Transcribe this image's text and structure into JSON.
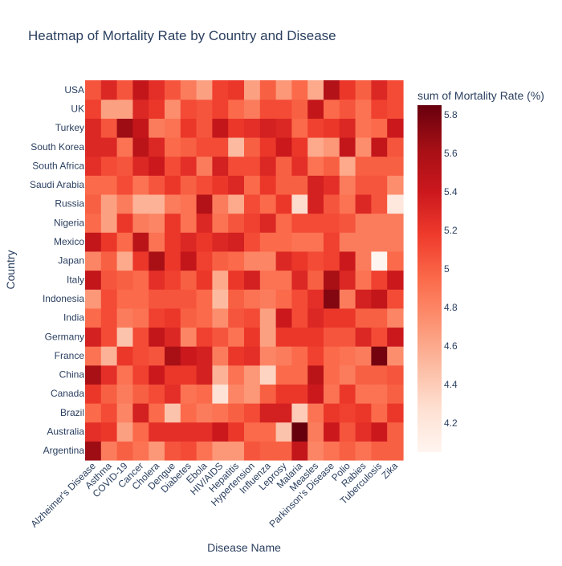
{
  "chart_data": {
    "type": "heatmap",
    "title": "Heatmap of Mortality Rate by Country and Disease",
    "xlabel": "Disease Name",
    "ylabel": "Country",
    "colorbar_title": "sum of Mortality Rate (%)",
    "colorscale": [
      "#fff5f0",
      "#fee0d2",
      "#fcbba1",
      "#fc9272",
      "#fb6a4a",
      "#ef3b2c",
      "#cb181d",
      "#a50f15",
      "#67000d"
    ],
    "zmin": 4.05,
    "zmax": 5.85,
    "colorbar_ticks": [
      4.2,
      4.4,
      4.6,
      4.8,
      5,
      5.2,
      5.4,
      5.6,
      5.8
    ],
    "colorbar_tick_labels": [
      "4.2",
      "4.4",
      "4.6",
      "4.8",
      "5",
      "5.2",
      "5.4",
      "5.6",
      "5.8"
    ],
    "x": [
      "Alzheimer's Disease",
      "Asthma",
      "COVID-19",
      "Cancer",
      "Cholera",
      "Dengue",
      "Diabetes",
      "Ebola",
      "HIV/AIDS",
      "Hepatitis",
      "Hypertension",
      "Influenza",
      "Leprosy",
      "Malaria",
      "Measles",
      "Parkinson's Disease",
      "Polio",
      "Rabies",
      "Tuberculosis",
      "Zika"
    ],
    "y": [
      "Argentina",
      "Australia",
      "Brazil",
      "Canada",
      "China",
      "France",
      "Germany",
      "India",
      "Indonesia",
      "Italy",
      "Japan",
      "Mexico",
      "Nigeria",
      "Russia",
      "Saudi Arabia",
      "South Africa",
      "South Korea",
      "Turkey",
      "UK",
      "USA"
    ],
    "z": [
      [
        5.65,
        4.85,
        5.0,
        4.9,
        4.7,
        5.05,
        5.1,
        4.9,
        4.7,
        4.7,
        5.05,
        5.0,
        5.0,
        5.45,
        4.8,
        4.9,
        5.0,
        4.9,
        5.0,
        5.0
      ],
      [
        5.25,
        5.2,
        4.65,
        4.95,
        5.25,
        5.25,
        5.25,
        5.25,
        5.4,
        5.2,
        4.95,
        4.95,
        4.45,
        5.85,
        4.85,
        5.4,
        5.05,
        5.25,
        5.4,
        5.0
      ],
      [
        4.95,
        5.1,
        4.8,
        5.35,
        4.95,
        4.45,
        4.95,
        4.85,
        4.9,
        5.0,
        5.1,
        5.35,
        5.35,
        4.4,
        4.9,
        5.2,
        5.15,
        5.2,
        4.95,
        5.2
      ],
      [
        5.2,
        5.0,
        4.85,
        5.0,
        5.1,
        5.25,
        4.9,
        4.95,
        4.25,
        4.8,
        4.7,
        5.0,
        5.2,
        5.2,
        5.4,
        4.9,
        5.2,
        4.9,
        4.9,
        5.0
      ],
      [
        5.6,
        5.25,
        4.9,
        5.15,
        5.4,
        5.2,
        5.2,
        5.35,
        4.55,
        4.9,
        4.7,
        4.35,
        4.95,
        4.95,
        5.5,
        4.95,
        4.85,
        5.0,
        5.0,
        5.05
      ],
      [
        4.9,
        4.55,
        5.2,
        5.1,
        5.05,
        5.6,
        5.4,
        5.35,
        4.85,
        5.2,
        5.25,
        4.8,
        4.85,
        4.95,
        5.15,
        4.95,
        4.9,
        4.85,
        5.8,
        4.75
      ],
      [
        5.35,
        5.1,
        4.45,
        5.1,
        5.45,
        5.3,
        4.8,
        5.15,
        5.05,
        4.9,
        5.2,
        4.65,
        5.2,
        5.2,
        5.2,
        5.05,
        5.05,
        5.3,
        5.1,
        5.4
      ],
      [
        4.95,
        5.1,
        4.85,
        4.9,
        5.15,
        5.2,
        5.0,
        4.95,
        4.75,
        5.05,
        5.1,
        4.65,
        5.4,
        5.1,
        5.3,
        5.2,
        5.2,
        5.0,
        5.0,
        4.8
      ],
      [
        4.7,
        5.1,
        4.95,
        4.95,
        5.05,
        5.05,
        5.05,
        4.95,
        4.5,
        5.0,
        4.9,
        4.85,
        4.95,
        5.1,
        5.25,
        5.75,
        4.85,
        5.35,
        5.45,
        5.1
      ],
      [
        5.45,
        5.05,
        5.0,
        4.95,
        5.25,
        5.15,
        5.0,
        5.2,
        4.6,
        5.2,
        5.35,
        4.9,
        4.9,
        5.3,
        5.0,
        5.6,
        5.3,
        4.9,
        5.15,
        5.4
      ],
      [
        4.8,
        5.0,
        4.6,
        5.2,
        5.6,
        5.2,
        5.45,
        5.15,
        5.0,
        4.95,
        4.8,
        4.8,
        5.3,
        5.2,
        5.1,
        5.15,
        5.4,
        4.85,
        4.05,
        4.95
      ],
      [
        5.45,
        5.2,
        4.95,
        5.5,
        4.9,
        5.2,
        5.3,
        5.2,
        5.3,
        5.35,
        5.1,
        4.95,
        4.95,
        4.9,
        4.9,
        5.15,
        4.85,
        4.85,
        4.85,
        4.85
      ],
      [
        4.95,
        4.65,
        5.2,
        4.85,
        4.8,
        5.2,
        4.9,
        5.3,
        4.9,
        5.05,
        5.15,
        5.3,
        4.95,
        5.1,
        5.1,
        5.1,
        5.05,
        4.85,
        4.85,
        4.85
      ],
      [
        5.0,
        4.65,
        4.85,
        4.55,
        4.55,
        4.85,
        4.9,
        5.55,
        4.85,
        4.6,
        5.1,
        4.95,
        5.2,
        4.3,
        5.35,
        5.05,
        4.9,
        5.3,
        5.05,
        4.2
      ],
      [
        4.95,
        4.95,
        5.1,
        4.9,
        5.05,
        5.2,
        5.0,
        5.1,
        5.2,
        5.3,
        4.95,
        5.2,
        5.0,
        5.0,
        5.35,
        5.25,
        4.85,
        5.05,
        5.05,
        4.75
      ],
      [
        5.25,
        5.1,
        5.05,
        5.3,
        5.4,
        5.1,
        5.25,
        4.85,
        5.35,
        5.1,
        5.1,
        5.3,
        5.0,
        5.25,
        4.9,
        5.0,
        4.6,
        5.0,
        5.0,
        5.0
      ],
      [
        5.3,
        5.3,
        4.9,
        5.5,
        5.3,
        4.95,
        5.0,
        5.1,
        5.1,
        4.5,
        5.0,
        5.2,
        5.4,
        5.2,
        4.6,
        4.7,
        5.45,
        4.75,
        5.45,
        5.05
      ],
      [
        5.3,
        5.05,
        5.65,
        5.45,
        4.85,
        4.9,
        5.2,
        5.05,
        5.45,
        5.2,
        5.25,
        5.35,
        5.3,
        4.95,
        5.15,
        5.2,
        5.3,
        4.9,
        4.95,
        5.4
      ],
      [
        5.15,
        4.65,
        4.65,
        5.3,
        5.2,
        4.75,
        5.1,
        5.05,
        5.15,
        4.95,
        4.85,
        5.1,
        5.1,
        5.0,
        5.45,
        4.95,
        5.05,
        4.9,
        5.15,
        5.1
      ],
      [
        5.05,
        5.3,
        5.05,
        5.45,
        5.25,
        5.05,
        4.85,
        4.65,
        5.15,
        5.2,
        4.65,
        5.0,
        4.7,
        4.95,
        4.6,
        5.55,
        5.2,
        5.0,
        5.3,
        5.1
      ]
    ]
  }
}
